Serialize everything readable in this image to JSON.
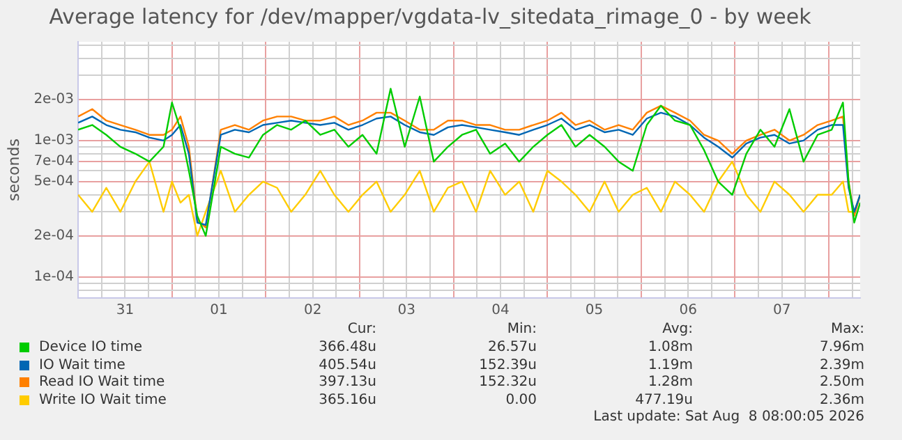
{
  "chart_data": {
    "type": "line",
    "title": "Average latency for /dev/mapper/vgdata-lv_sitedata_rimage_0 - by week",
    "ylabel": "seconds",
    "log": true,
    "grid": true,
    "legend": "bottom",
    "marker": "none",
    "line_style": "solid",
    "xlim": [
      "2026-07-31T00:00",
      "2026-08-08T08:00"
    ],
    "ylim": [
      7e-05,
      0.0053
    ],
    "xticks": [
      {
        "value": "2026-07-31T06:00",
        "label": null
      },
      {
        "value": "2026-07-31T12:00",
        "label": "31"
      },
      {
        "value": "2026-07-31T18:00",
        "label": null
      },
      {
        "value": "2026-08-01T00:00",
        "label": null
      },
      {
        "value": "2026-08-01T06:00",
        "label": null
      },
      {
        "value": "2026-08-01T12:00",
        "label": "01"
      },
      {
        "value": "2026-08-01T18:00",
        "label": null
      },
      {
        "value": "2026-08-02T00:00",
        "label": null
      },
      {
        "value": "2026-08-02T06:00",
        "label": null
      },
      {
        "value": "2026-08-02T12:00",
        "label": "02"
      },
      {
        "value": "2026-08-02T18:00",
        "label": null
      },
      {
        "value": "2026-08-03T00:00",
        "label": null
      },
      {
        "value": "2026-08-03T06:00",
        "label": null
      },
      {
        "value": "2026-08-03T12:00",
        "label": "03"
      },
      {
        "value": "2026-08-03T18:00",
        "label": null
      },
      {
        "value": "2026-08-04T00:00",
        "label": null
      },
      {
        "value": "2026-08-04T06:00",
        "label": null
      },
      {
        "value": "2026-08-04T12:00",
        "label": "04"
      },
      {
        "value": "2026-08-04T18:00",
        "label": null
      },
      {
        "value": "2026-08-05T00:00",
        "label": null
      },
      {
        "value": "2026-08-05T06:00",
        "label": null
      },
      {
        "value": "2026-08-05T12:00",
        "label": "05"
      },
      {
        "value": "2026-08-05T18:00",
        "label": null
      },
      {
        "value": "2026-08-06T00:00",
        "label": null
      },
      {
        "value": "2026-08-06T06:00",
        "label": null
      },
      {
        "value": "2026-08-06T12:00",
        "label": "06"
      },
      {
        "value": "2026-08-06T18:00",
        "label": null
      },
      {
        "value": "2026-08-07T00:00",
        "label": null
      },
      {
        "value": "2026-08-07T06:00",
        "label": null
      },
      {
        "value": "2026-08-07T12:00",
        "label": "07"
      },
      {
        "value": "2026-08-07T18:00",
        "label": null
      },
      {
        "value": "2026-08-08T00:00",
        "label": null
      },
      {
        "value": "2026-08-08T06:00",
        "label": null
      }
    ],
    "yticks": [
      {
        "value": 8e-05,
        "label": null
      },
      {
        "value": 9e-05,
        "label": null
      },
      {
        "value": 0.0001,
        "label": "1e-04"
      },
      {
        "value": 0.0002,
        "label": "2e-04"
      },
      {
        "value": 0.0003,
        "label": null
      },
      {
        "value": 0.0004,
        "label": null
      },
      {
        "value": 0.0005,
        "label": "5e-04"
      },
      {
        "value": 0.0006,
        "label": null
      },
      {
        "value": 0.0007,
        "label": "7e-04"
      },
      {
        "value": 0.0008,
        "label": null
      },
      {
        "value": 0.0009,
        "label": null
      },
      {
        "value": 0.001,
        "label": "1e-03"
      },
      {
        "value": 0.002,
        "label": "2e-03"
      },
      {
        "value": 0.003,
        "label": null
      },
      {
        "value": 0.004,
        "label": null
      },
      {
        "value": 0.005,
        "label": null
      }
    ],
    "x": [
      "2026-07-31T00:00",
      "2026-07-31T03:36",
      "2026-07-31T07:12",
      "2026-07-31T10:48",
      "2026-07-31T14:38",
      "2026-07-31T18:14",
      "2026-07-31T21:50",
      "2026-08-01T00:00",
      "2026-08-01T02:10",
      "2026-08-01T04:19",
      "2026-08-01T06:29",
      "2026-08-01T08:38",
      "2026-08-01T12:29",
      "2026-08-01T16:05",
      "2026-08-01T19:41",
      "2026-08-01T23:17",
      "2026-08-02T02:53",
      "2026-08-02T06:29",
      "2026-08-02T10:05",
      "2026-08-02T13:55",
      "2026-08-02T17:31",
      "2026-08-02T21:07",
      "2026-08-03T00:43",
      "2026-08-03T04:19",
      "2026-08-03T07:55",
      "2026-08-03T11:31",
      "2026-08-03T15:22",
      "2026-08-03T18:58",
      "2026-08-03T22:34",
      "2026-08-04T02:10",
      "2026-08-04T05:46",
      "2026-08-04T09:22",
      "2026-08-04T13:12",
      "2026-08-04T16:48",
      "2026-08-04T20:24",
      "2026-08-05T00:00",
      "2026-08-05T03:36",
      "2026-08-05T07:12",
      "2026-08-05T10:48",
      "2026-08-05T14:38",
      "2026-08-05T18:14",
      "2026-08-05T21:50",
      "2026-08-06T01:26",
      "2026-08-06T05:02",
      "2026-08-06T08:38",
      "2026-08-06T12:29",
      "2026-08-06T16:05",
      "2026-08-06T19:41",
      "2026-08-06T23:17",
      "2026-08-07T02:53",
      "2026-08-07T06:29",
      "2026-08-07T10:05",
      "2026-08-07T13:55",
      "2026-08-07T17:31",
      "2026-08-07T21:07",
      "2026-08-08T00:43",
      "2026-08-08T03:36",
      "2026-08-08T05:02",
      "2026-08-08T06:29",
      "2026-08-08T08:00"
    ],
    "series": [
      {
        "name": "Device IO time",
        "color": "#00cc00",
        "values": [
          0.0012,
          0.0013,
          0.0011,
          0.0009,
          0.0008,
          0.0007,
          0.0009,
          0.0019,
          0.0012,
          0.0006,
          0.00028,
          0.0002,
          0.0009,
          0.0008,
          0.00075,
          0.0011,
          0.0013,
          0.0012,
          0.0014,
          0.0011,
          0.0012,
          0.0009,
          0.0011,
          0.0008,
          0.0024,
          0.0009,
          0.0021,
          0.0007,
          0.0009,
          0.0011,
          0.0012,
          0.0008,
          0.00095,
          0.0007,
          0.0009,
          0.0011,
          0.0013,
          0.0009,
          0.0011,
          0.0009,
          0.0007,
          0.0006,
          0.0013,
          0.0018,
          0.0014,
          0.0013,
          0.00085,
          0.0005,
          0.0004,
          0.0008,
          0.0012,
          0.0009,
          0.0017,
          0.0007,
          0.0011,
          0.0012,
          0.0019,
          0.0005,
          0.00025,
          0.00035
        ]
      },
      {
        "name": "IO Wait time",
        "color": "#0066b3",
        "values": [
          0.00135,
          0.0015,
          0.0013,
          0.0012,
          0.00115,
          0.00105,
          0.001,
          0.0011,
          0.0013,
          0.0008,
          0.00025,
          0.00024,
          0.0011,
          0.0012,
          0.00115,
          0.0013,
          0.00135,
          0.0014,
          0.00135,
          0.0013,
          0.00135,
          0.0012,
          0.0013,
          0.00145,
          0.0015,
          0.0013,
          0.00115,
          0.0011,
          0.00125,
          0.0013,
          0.00125,
          0.0012,
          0.00115,
          0.0011,
          0.0012,
          0.0013,
          0.00145,
          0.0012,
          0.0013,
          0.00115,
          0.0012,
          0.0011,
          0.00145,
          0.0016,
          0.0015,
          0.0013,
          0.00105,
          0.0009,
          0.00075,
          0.00095,
          0.00105,
          0.0011,
          0.00095,
          0.001,
          0.0012,
          0.0013,
          0.0013,
          0.00045,
          0.0003,
          0.0004
        ]
      },
      {
        "name": "Read IO Wait time",
        "color": "#ff8000",
        "values": [
          0.0015,
          0.0017,
          0.0014,
          0.0013,
          0.0012,
          0.0011,
          0.0011,
          0.0012,
          0.0015,
          0.0009,
          0.00026,
          0.00023,
          0.0012,
          0.0013,
          0.0012,
          0.0014,
          0.0015,
          0.0015,
          0.0014,
          0.0014,
          0.0015,
          0.0013,
          0.0014,
          0.0016,
          0.0016,
          0.0014,
          0.0012,
          0.0012,
          0.0014,
          0.0014,
          0.0013,
          0.0013,
          0.0012,
          0.0012,
          0.0013,
          0.0014,
          0.0016,
          0.0013,
          0.0014,
          0.0012,
          0.0013,
          0.0012,
          0.0016,
          0.0018,
          0.0016,
          0.0014,
          0.0011,
          0.001,
          0.0008,
          0.001,
          0.0011,
          0.0012,
          0.001,
          0.0011,
          0.0013,
          0.0014,
          0.0015,
          0.0005,
          0.00028,
          0.0004
        ]
      },
      {
        "name": "Write IO Wait time",
        "color": "#ffcc00",
        "values": [
          0.0004,
          0.0003,
          0.00045,
          0.0003,
          0.0005,
          0.0007,
          0.0003,
          0.0005,
          0.00035,
          0.0004,
          0.0002,
          0.0003,
          0.0006,
          0.0003,
          0.0004,
          0.0005,
          0.00045,
          0.0003,
          0.0004,
          0.0006,
          0.0004,
          0.0003,
          0.0004,
          0.0005,
          0.0003,
          0.0004,
          0.0006,
          0.0003,
          0.00045,
          0.0005,
          0.0003,
          0.0006,
          0.0004,
          0.0005,
          0.0003,
          0.0006,
          0.0005,
          0.0004,
          0.0003,
          0.0005,
          0.0003,
          0.0004,
          0.00045,
          0.0003,
          0.0005,
          0.0004,
          0.0003,
          0.0005,
          0.0007,
          0.0004,
          0.0003,
          0.0005,
          0.0004,
          0.0003,
          0.0004,
          0.0004,
          0.0005,
          0.0003,
          0.0003,
          0.0004
        ]
      }
    ],
    "annotations": [
      "Cur:",
      "Min:",
      "Avg:",
      "Max:",
      "366.48u",
      "26.57u",
      "1.08m",
      "7.96m",
      "405.54u",
      "152.39u",
      "1.19m",
      "2.39m",
      "397.13u",
      "152.32u",
      "1.28m",
      "2.50m",
      "365.16u",
      "0.00",
      "477.19u",
      "2.36m",
      "Last update: Sat Aug  8 08:00:05 2026"
    ]
  }
}
